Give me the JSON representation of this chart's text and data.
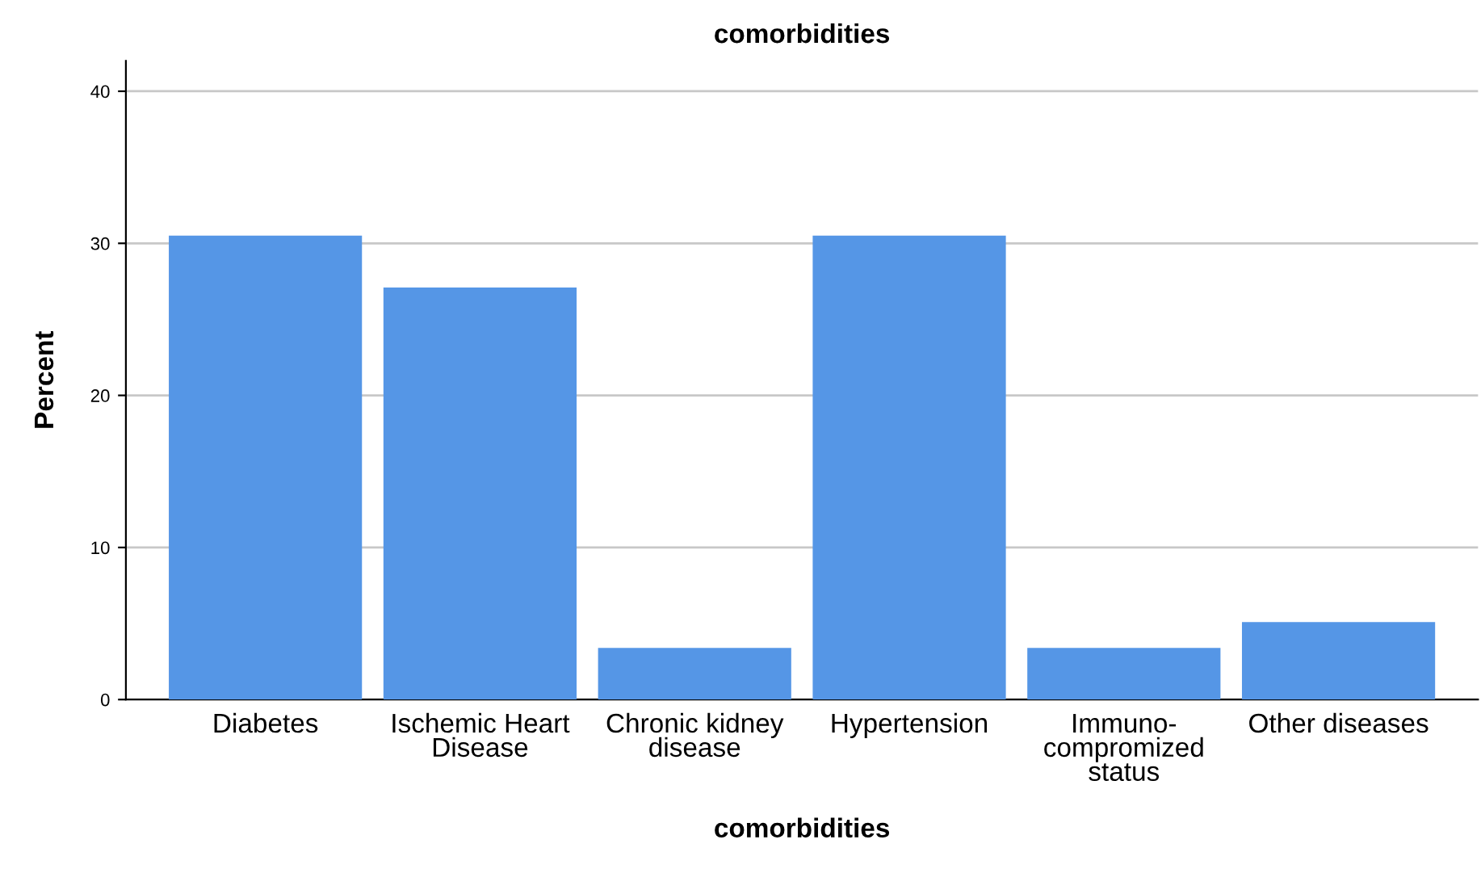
{
  "chart_data": {
    "type": "bar",
    "title": "comorbidities",
    "xlabel": "comorbidities",
    "ylabel": "Percent",
    "categories": [
      "Diabetes",
      "Ischemic Heart\nDisease",
      "Chronic kidney\ndisease",
      "Hypertension",
      "Immuno-\ncompromized\nstatus",
      "Other diseases"
    ],
    "values": [
      30.5,
      27.1,
      3.4,
      30.5,
      3.4,
      5.1
    ],
    "color": "#5596e6",
    "ylim": [
      0,
      42
    ],
    "yticks": [
      0,
      10,
      20,
      30,
      40
    ],
    "grid": "y"
  }
}
